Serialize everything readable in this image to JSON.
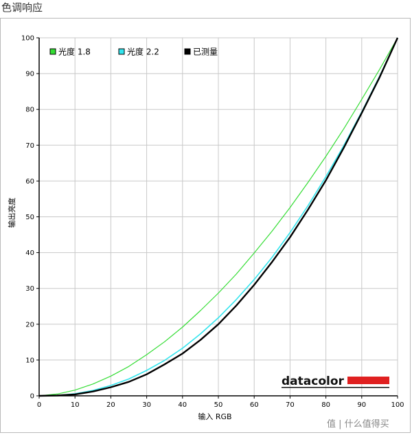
{
  "page": {
    "title": "色调响应"
  },
  "watermark": "值 | 什么值得买",
  "logo": {
    "text": "datacolor"
  },
  "chart_data": {
    "type": "line",
    "title": "",
    "xlabel": "输入 RGB",
    "ylabel": "输出亮度",
    "xlim": [
      0,
      100
    ],
    "ylim": [
      0,
      100
    ],
    "xticks": [
      0,
      10,
      20,
      30,
      40,
      50,
      60,
      70,
      80,
      90,
      100
    ],
    "yticks": [
      0,
      10,
      20,
      30,
      40,
      50,
      60,
      70,
      80,
      90,
      100
    ],
    "grid": true,
    "legend": "top-left",
    "x": [
      0,
      5,
      10,
      15,
      20,
      25,
      30,
      35,
      40,
      45,
      50,
      55,
      60,
      65,
      70,
      75,
      80,
      85,
      90,
      95,
      100
    ],
    "series": [
      {
        "name": "光度 1.8",
        "color": "#33dd33",
        "values": [
          0,
          0.5,
          1.6,
          3.3,
          5.5,
          8.2,
          11.5,
          15.1,
          19.2,
          23.8,
          28.7,
          34.0,
          39.9,
          46.0,
          52.6,
          59.6,
          66.9,
          74.6,
          82.8,
          91.2,
          100
        ]
      },
      {
        "name": "光度 2.2",
        "color": "#33e5ee",
        "values": [
          0,
          0.1,
          0.6,
          1.5,
          2.9,
          4.7,
          7.1,
          9.9,
          13.3,
          17.3,
          21.8,
          26.9,
          32.5,
          38.7,
          45.6,
          53.1,
          61.2,
          69.9,
          79.3,
          89.3,
          100
        ]
      },
      {
        "name": "已测量",
        "color": "#000000",
        "values": [
          0,
          0.1,
          0.4,
          1.2,
          2.4,
          3.9,
          6.0,
          8.8,
          11.8,
          15.6,
          20.0,
          25.2,
          31.0,
          37.4,
          44.3,
          52.0,
          60.2,
          69.3,
          79.0,
          89.0,
          100
        ]
      }
    ]
  }
}
